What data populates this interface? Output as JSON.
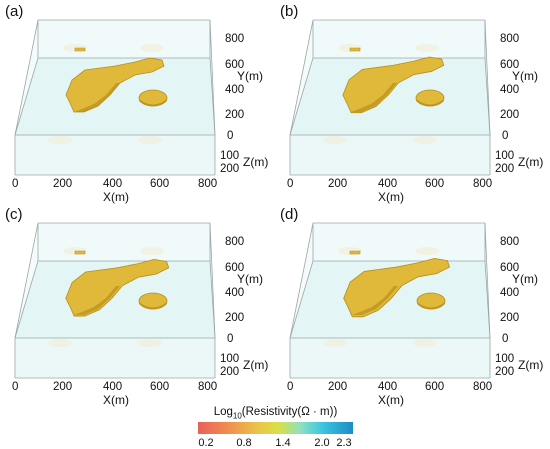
{
  "panels": [
    {
      "label": "(a)"
    },
    {
      "label": "(b)"
    },
    {
      "label": "(c)"
    },
    {
      "label": "(d)"
    }
  ],
  "axes": {
    "x_ticks": [
      "0",
      "200",
      "400",
      "600",
      "800"
    ],
    "x_label": "X(m)",
    "y_ticks": [
      "0",
      "200",
      "400",
      "600",
      "800"
    ],
    "y_label": "Y(m)",
    "z_ticks": [
      "100",
      "200"
    ],
    "z_label": "Z(m)"
  },
  "colorbar": {
    "title_prefix": "Log",
    "title_sub": "10",
    "title_suffix": "(Resistivity(Ω · m))",
    "ticks": [
      "0.2",
      "0.8",
      "1.4",
      "2.0",
      "2.3"
    ]
  },
  "colors": {
    "box_fill": "#dff3f3",
    "box_edge": "#9aa7a7",
    "body_fill": "#e0b83a",
    "body_shadow": "#b88f1a"
  }
}
